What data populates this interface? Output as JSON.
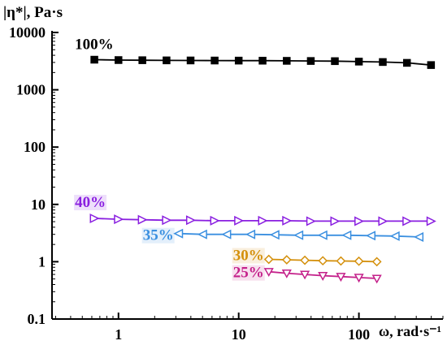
{
  "chart_data": {
    "type": "line",
    "title": "",
    "ylabel": "|η*|, Pa·s",
    "xlabel": "ω, rad·s⁻¹",
    "x_scale": "log",
    "y_scale": "log",
    "xlim": [
      0.28,
      500
    ],
    "ylim": [
      0.1,
      10000
    ],
    "x_ticks": [
      1,
      10,
      100
    ],
    "x_tick_labels": [
      "1",
      "10",
      "100"
    ],
    "y_ticks": [
      0.1,
      1,
      10,
      100,
      1000,
      10000
    ],
    "y_tick_labels": [
      "0.1",
      "1",
      "10",
      "100",
      "1000",
      "10000"
    ],
    "grid": false,
    "series": [
      {
        "name": "100%",
        "color": "#000000",
        "marker": "square-filled",
        "x": [
          0.63,
          1.0,
          1.58,
          2.51,
          3.98,
          6.31,
          10.0,
          15.8,
          25.1,
          39.8,
          63.1,
          100,
          158,
          251,
          398
        ],
        "y": [
          3350,
          3300,
          3280,
          3260,
          3250,
          3240,
          3230,
          3220,
          3200,
          3180,
          3160,
          3100,
          3050,
          2950,
          2700
        ]
      },
      {
        "name": "40%",
        "color": "#8a1fe0",
        "marker": "triangle-right-open",
        "x": [
          0.63,
          1.0,
          1.58,
          2.51,
          3.98,
          6.31,
          10.0,
          15.8,
          25.1,
          39.8,
          63.1,
          100,
          158,
          251,
          398
        ],
        "y": [
          5.7,
          5.5,
          5.4,
          5.3,
          5.3,
          5.2,
          5.2,
          5.2,
          5.2,
          5.1,
          5.1,
          5.1,
          5.1,
          5.1,
          5.1
        ]
      },
      {
        "name": "35%",
        "color": "#3a8fe0",
        "marker": "triangle-left-open",
        "x": [
          3.16,
          5.01,
          7.94,
          12.6,
          20.0,
          31.6,
          50.1,
          79.4,
          126,
          200,
          316
        ],
        "y": [
          3.1,
          3.0,
          3.0,
          3.0,
          2.95,
          2.9,
          2.9,
          2.9,
          2.85,
          2.8,
          2.7
        ]
      },
      {
        "name": "30%",
        "color": "#d4900c",
        "marker": "diamond-open",
        "x": [
          17.8,
          25.1,
          35.5,
          50.1,
          70.8,
          100,
          141
        ],
        "y": [
          1.1,
          1.08,
          1.06,
          1.04,
          1.03,
          1.02,
          1.0
        ]
      },
      {
        "name": "25%",
        "color": "#c4208a",
        "marker": "triangle-down-open",
        "x": [
          17.8,
          25.1,
          35.5,
          50.1,
          70.8,
          100,
          141
        ],
        "y": [
          0.67,
          0.63,
          0.6,
          0.57,
          0.55,
          0.53,
          0.51
        ]
      }
    ]
  }
}
